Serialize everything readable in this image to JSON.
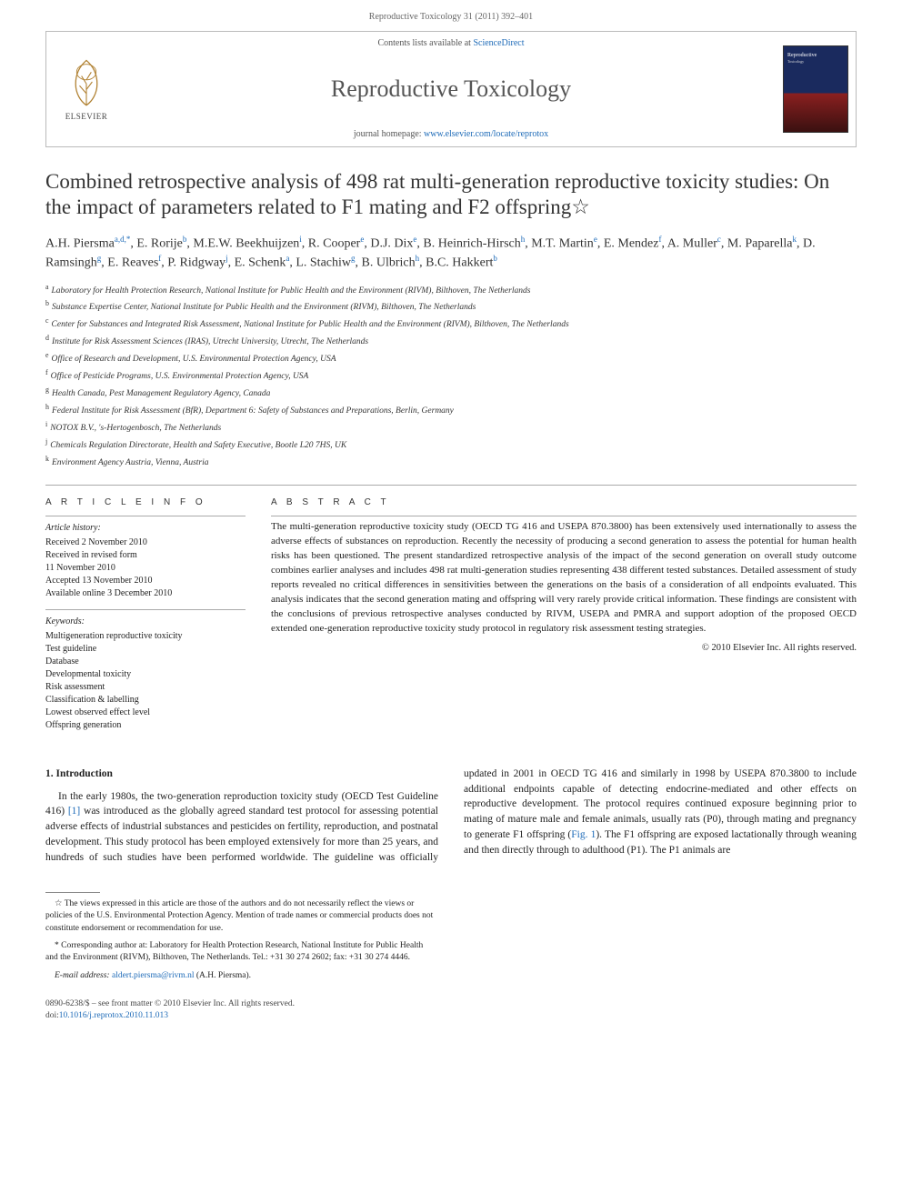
{
  "running_head": "Reproductive Toxicology 31 (2011) 392–401",
  "journal_box": {
    "contents_prefix": "Contents lists available at ",
    "contents_link": "ScienceDirect",
    "journal_name": "Reproductive Toxicology",
    "homepage_prefix": "journal homepage: ",
    "homepage_url": "www.elsevier.com/locate/reprotox",
    "elsevier_label": "ELSEVIER",
    "cover_title": "Reproductive",
    "cover_sub": "Toxicology"
  },
  "article": {
    "title": "Combined retrospective analysis of 498 rat multi-generation reproductive toxicity studies: On the impact of parameters related to F1 mating and F2 offspring☆",
    "authors_html": "A.H. Piersma<sup>a,d,*</sup>, E. Rorije<sup>b</sup>, M.E.W. Beekhuijzen<sup>i</sup>, R. Cooper<sup>e</sup>, D.J. Dix<sup>e</sup>, B. Heinrich-Hirsch<sup>h</sup>, M.T. Martin<sup>e</sup>, E. Mendez<sup>f</sup>, A. Muller<sup>c</sup>, M. Paparella<sup>k</sup>, D. Ramsingh<sup>g</sup>, E. Reaves<sup>f</sup>, P. Ridgway<sup>j</sup>, E. Schenk<sup>a</sup>, L. Stachiw<sup>g</sup>, B. Ulbrich<sup>h</sup>, B.C. Hakkert<sup>b</sup>",
    "affiliations": [
      {
        "sup": "a",
        "text": "Laboratory for Health Protection Research, National Institute for Public Health and the Environment (RIVM), Bilthoven, The Netherlands"
      },
      {
        "sup": "b",
        "text": "Substance Expertise Center, National Institute for Public Health and the Environment (RIVM), Bilthoven, The Netherlands"
      },
      {
        "sup": "c",
        "text": "Center for Substances and Integrated Risk Assessment, National Institute for Public Health and the Environment (RIVM), Bilthoven, The Netherlands"
      },
      {
        "sup": "d",
        "text": "Institute for Risk Assessment Sciences (IRAS), Utrecht University, Utrecht, The Netherlands"
      },
      {
        "sup": "e",
        "text": "Office of Research and Development, U.S. Environmental Protection Agency, USA"
      },
      {
        "sup": "f",
        "text": "Office of Pesticide Programs, U.S. Environmental Protection Agency, USA"
      },
      {
        "sup": "g",
        "text": "Health Canada, Pest Management Regulatory Agency, Canada"
      },
      {
        "sup": "h",
        "text": "Federal Institute for Risk Assessment (BfR), Department 6: Safety of Substances and Preparations, Berlin, Germany"
      },
      {
        "sup": "i",
        "text": "NOTOX B.V., 's-Hertogenbosch, The Netherlands"
      },
      {
        "sup": "j",
        "text": "Chemicals Regulation Directorate, Health and Safety Executive, Bootle L20 7HS, UK"
      },
      {
        "sup": "k",
        "text": "Environment Agency Austria, Vienna, Austria"
      }
    ]
  },
  "info": {
    "heading": "A R T I C L E   I N F O",
    "history_label": "Article history:",
    "history": [
      "Received 2 November 2010",
      "Received in revised form",
      "11 November 2010",
      "Accepted 13 November 2010",
      "Available online 3 December 2010"
    ],
    "keywords_label": "Keywords:",
    "keywords": [
      "Multigeneration reproductive toxicity",
      "Test guideline",
      "Database",
      "Developmental toxicity",
      "Risk assessment",
      "Classification & labelling",
      "Lowest observed effect level",
      "Offspring generation"
    ]
  },
  "abstract": {
    "heading": "A B S T R A C T",
    "text": "The multi-generation reproductive toxicity study (OECD TG 416 and USEPA 870.3800) has been extensively used internationally to assess the adverse effects of substances on reproduction. Recently the necessity of producing a second generation to assess the potential for human health risks has been questioned. The present standardized retrospective analysis of the impact of the second generation on overall study outcome combines earlier analyses and includes 498 rat multi-generation studies representing 438 different tested substances. Detailed assessment of study reports revealed no critical differences in sensitivities between the generations on the basis of a consideration of all endpoints evaluated. This analysis indicates that the second generation mating and offspring will very rarely provide critical information. These findings are consistent with the conclusions of previous retrospective analyses conducted by RIVM, USEPA and PMRA and support adoption of the proposed OECD extended one-generation reproductive toxicity study protocol in regulatory risk assessment testing strategies.",
    "copyright": "© 2010 Elsevier Inc. All rights reserved."
  },
  "intro": {
    "heading": "1. Introduction",
    "p1_pre": "In the early 1980s, the two-generation reproduction toxicity study (OECD Test Guideline 416) ",
    "p1_ref": "[1]",
    "p1_post": " was introduced as the glob",
    "p2_pre": "ally agreed standard test protocol for assessing potential adverse effects of industrial substances and pesticides on fertility, reproduction, and postnatal development. This study protocol has been employed extensively for more than 25 years, and hundreds of such studies have been performed worldwide. The guideline was officially updated in 2001 in OECD TG 416 and similarly in 1998 by USEPA 870.3800 to include additional endpoints capable of detecting endocrine-mediated and other effects on reproductive development. The protocol requires continued exposure beginning prior to mating of mature male and female animals, usually rats (P0), through mating and pregnancy to generate F1 offspring (",
    "p2_fig": "Fig. 1",
    "p2_post": "). The F1 offspring are exposed lactationally through weaning and then directly through to adulthood (P1). The P1 animals are"
  },
  "footnotes": {
    "star": "☆ The views expressed in this article are those of the authors and do not necessarily reflect the views or policies of the U.S. Environmental Protection Agency. Mention of trade names or commercial products does not constitute endorsement or recommendation for use.",
    "corr": "* Corresponding author at: Laboratory for Health Protection Research, National Institute for Public Health and the Environment (RIVM), Bilthoven, The Netherlands. Tel.: +31 30 274 2602; fax: +31 30 274 4446.",
    "email_label": "E-mail address: ",
    "email": "aldert.piersma@rivm.nl",
    "email_suffix": " (A.H. Piersma)."
  },
  "footer": {
    "line1": "0890-6238/$ – see front matter © 2010 Elsevier Inc. All rights reserved.",
    "doi_label": "doi:",
    "doi": "10.1016/j.reprotox.2010.11.013"
  },
  "colors": {
    "link": "#1e6bb8",
    "text": "#222222",
    "rule": "#aaaaaa",
    "cover_top": "#1a2a5e",
    "cover_bottom": "#8b2020"
  }
}
